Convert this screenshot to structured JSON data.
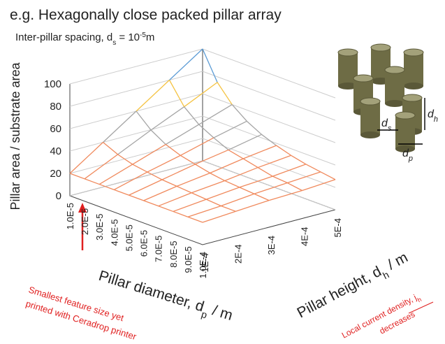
{
  "chart_data": {
    "type": "surface",
    "title": "e.g. Hexagonally close packed pillar array",
    "subtitle": [
      "Inter-pillar spacing, d",
      "s",
      " = 10",
      "-5",
      "m"
    ],
    "z_label": "Pillar area / substrate area",
    "x_label": [
      "Pillar diameter, d",
      "p",
      " / m"
    ],
    "y_label": [
      "Pillar height, d",
      "h",
      " / m"
    ],
    "x_categories": [
      "1.0E-5",
      "2.0E-5",
      "3.0E-5",
      "4.0E-5",
      "5.0E-5",
      "6.0E-5",
      "7.0E-5",
      "8.0E-5",
      "9.0E-5",
      "1.0E-4"
    ],
    "y_categories": [
      "1E-4",
      "2E-4",
      "3E-4",
      "4E-4",
      "5E-4"
    ],
    "zlim": [
      0,
      100
    ],
    "zticks": [
      0,
      20,
      40,
      60,
      80,
      100
    ],
    "grid": true,
    "band_colors": [
      "#6fa0dc",
      "#f08a5d",
      "#a5a5a5",
      "#f5c342",
      "#5b9bd5"
    ],
    "values": [
      [
        20,
        40,
        60,
        80,
        100
      ],
      [
        20,
        34,
        48,
        61,
        75
      ],
      [
        20,
        30,
        40,
        50,
        60
      ],
      [
        20,
        28,
        35,
        43,
        50
      ],
      [
        20,
        26,
        32,
        37,
        43
      ],
      [
        20,
        25,
        29,
        34,
        38
      ],
      [
        20,
        24,
        27,
        31,
        34
      ],
      [
        20,
        23,
        26,
        28,
        31
      ],
      [
        20,
        22,
        25,
        27,
        29
      ],
      [
        20,
        22,
        24,
        25,
        27
      ]
    ],
    "annotations": [
      [
        "Smallest feature size yet",
        "printed with Ceradrop printer"
      ],
      [
        "Local current density, j",
        "h",
        "decreases"
      ]
    ],
    "inset_labels": [
      [
        "d",
        "s"
      ],
      [
        "d",
        "h"
      ],
      [
        "d",
        "p"
      ]
    ]
  }
}
